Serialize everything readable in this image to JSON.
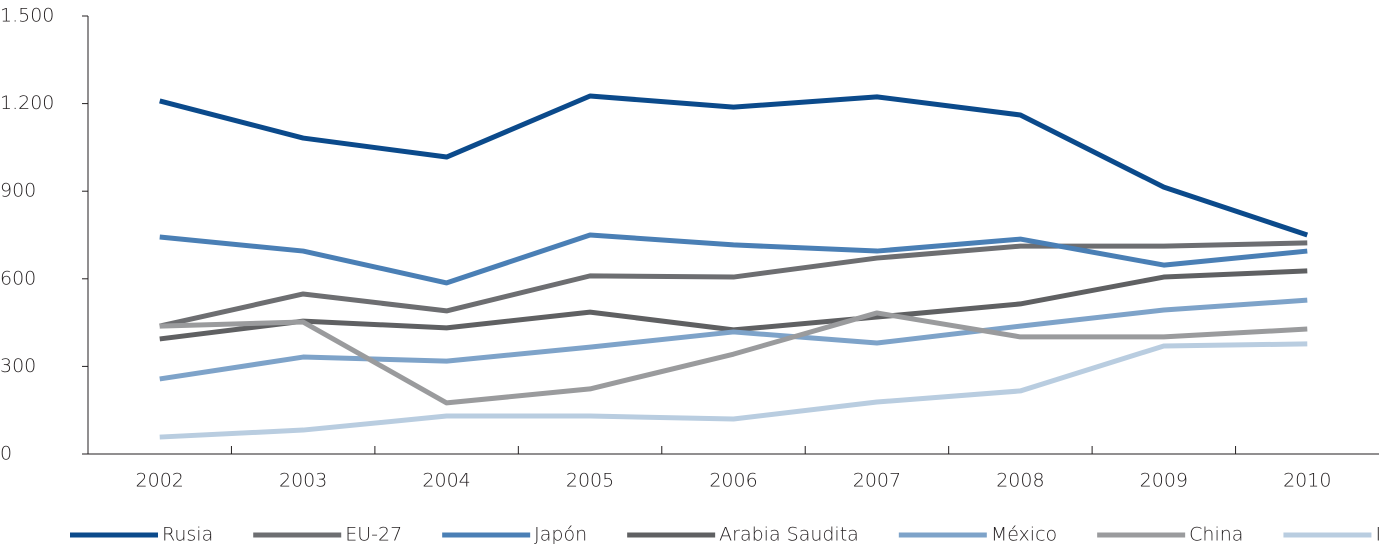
{
  "chart_data": {
    "type": "line",
    "categories": [
      "2002",
      "2003",
      "2004",
      "2005",
      "2006",
      "2007",
      "2008",
      "2009",
      "2010"
    ],
    "ylim": [
      0,
      1500
    ],
    "yticks": [
      0,
      300,
      600,
      900,
      {
        "value": 1200,
        "label": "1.200"
      },
      {
        "value": 1500,
        "label": "1.500"
      }
    ],
    "series": [
      {
        "name": "Rusia",
        "color": "#0b4a8b",
        "values": [
          1209,
          1082,
          1017,
          1226,
          1188,
          1223,
          1161,
          914,
          750
        ]
      },
      {
        "name": "EU-27",
        "color": "#6d6e71",
        "values": [
          438,
          548,
          490,
          610,
          606,
          671,
          712,
          712,
          723
        ]
      },
      {
        "name": "Japón",
        "color": "#4a7fb5",
        "values": [
          743,
          695,
          586,
          750,
          716,
          695,
          736,
          647,
          695
        ]
      },
      {
        "name": "Arabia Saudita",
        "color": "#5f6062",
        "values": [
          394,
          455,
          432,
          486,
          425,
          469,
          514,
          606,
          627
        ]
      },
      {
        "name": "México",
        "color": "#7ea3c9",
        "values": [
          257,
          332,
          318,
          366,
          418,
          380,
          438,
          493,
          527
        ]
      },
      {
        "name": "China",
        "color": "#9a9b9d",
        "values": [
          438,
          452,
          175,
          223,
          342,
          483,
          401,
          401,
          428
        ]
      },
      {
        "name": "Iraq",
        "color": "#b9cde0",
        "values": [
          58,
          82,
          130,
          130,
          120,
          178,
          216,
          370,
          377
        ]
      }
    ]
  }
}
